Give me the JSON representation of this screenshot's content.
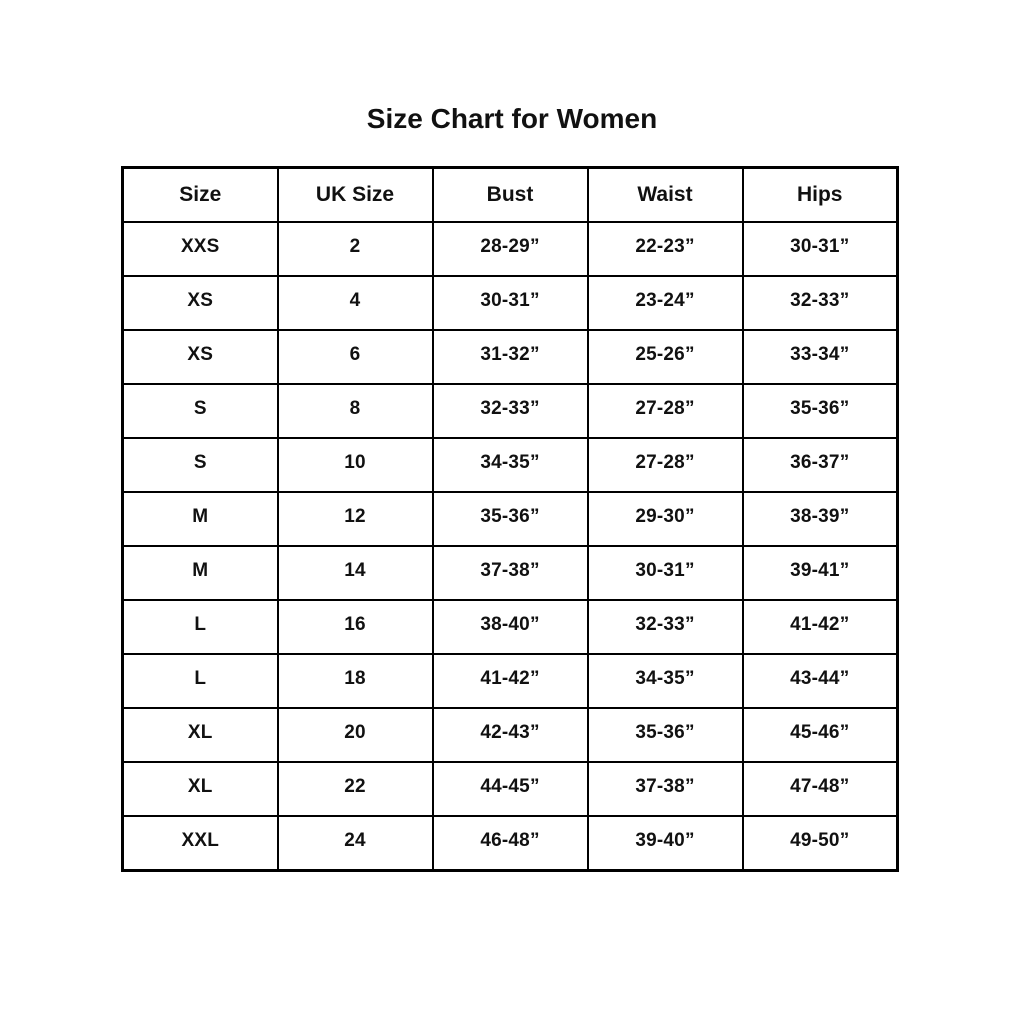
{
  "page": {
    "title": "Size Chart for Women",
    "background_color": "#ffffff",
    "text_color": "#111111",
    "border_color": "#000000"
  },
  "table": {
    "headers": [
      "Size",
      "UK Size",
      "Bust",
      "Waist",
      "Hips"
    ],
    "rows": [
      [
        "XXS",
        "2",
        "28-29”",
        "22-23”",
        "30-31”"
      ],
      [
        "XS",
        "4",
        "30-31”",
        "23-24”",
        "32-33”"
      ],
      [
        "XS",
        "6",
        "31-32”",
        "25-26”",
        "33-34”"
      ],
      [
        "S",
        "8",
        "32-33”",
        "27-28”",
        "35-36”"
      ],
      [
        "S",
        "10",
        "34-35”",
        "27-28”",
        "36-37”"
      ],
      [
        "M",
        "12",
        "35-36”",
        "29-30”",
        "38-39”"
      ],
      [
        "M",
        "14",
        "37-38”",
        "30-31”",
        "39-41”"
      ],
      [
        "L",
        "16",
        "38-40”",
        "32-33”",
        "41-42”"
      ],
      [
        "L",
        "18",
        "41-42”",
        "34-35”",
        "43-44”"
      ],
      [
        "XL",
        "20",
        "42-43”",
        "35-36”",
        "45-46”"
      ],
      [
        "XL",
        "22",
        "44-45”",
        "37-38”",
        "47-48”"
      ],
      [
        "XXL",
        "24",
        "46-48”",
        "39-40”",
        "49-50”"
      ]
    ]
  }
}
